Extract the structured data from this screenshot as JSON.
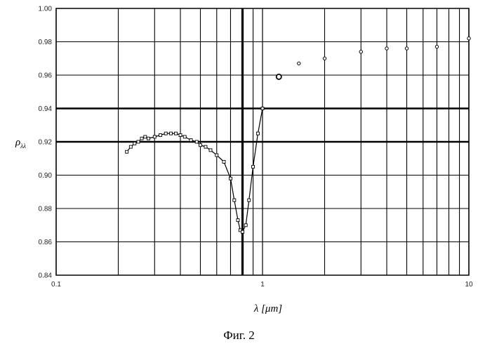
{
  "chart_data": {
    "type": "scatter",
    "title": "",
    "xlabel": "λ [μm]",
    "ylabel": "ρλ",
    "ylabel_main": "ρ",
    "ylabel_sub": "λλ",
    "x_scale": "log",
    "xlim": [
      0.1,
      10
    ],
    "ylim": [
      0.84,
      1.0
    ],
    "x_ticks": [
      0.1,
      1,
      10
    ],
    "x_tick_labels": [
      "0.1",
      "1",
      "10"
    ],
    "y_ticks": [
      0.84,
      0.86,
      0.88,
      0.9,
      0.92,
      0.94,
      0.96,
      0.98,
      1.0
    ],
    "y_tick_labels": [
      "0.84",
      "0.86",
      "0.88",
      "0.90",
      "0.92",
      "0.94",
      "0.96",
      "0.98",
      "1.00"
    ],
    "grid": true,
    "emphasized_gridlines": {
      "y": [
        0.92,
        0.94
      ],
      "x": [
        0.8
      ]
    },
    "series": [
      {
        "style": "line-with-markers",
        "x": [
          0.22,
          0.23,
          0.24,
          0.25,
          0.26,
          0.27,
          0.28,
          0.3,
          0.32,
          0.34,
          0.36,
          0.38,
          0.4,
          0.42,
          0.45,
          0.48,
          0.5,
          0.53,
          0.56,
          0.6,
          0.65,
          0.7,
          0.73,
          0.76,
          0.78,
          0.8,
          0.83,
          0.86,
          0.9,
          0.95,
          1.0
        ],
        "y": [
          0.914,
          0.917,
          0.919,
          0.92,
          0.922,
          0.923,
          0.922,
          0.923,
          0.924,
          0.925,
          0.925,
          0.925,
          0.924,
          0.923,
          0.921,
          0.92,
          0.918,
          0.917,
          0.915,
          0.912,
          0.908,
          0.898,
          0.885,
          0.873,
          0.867,
          0.866,
          0.87,
          0.885,
          0.905,
          0.925,
          0.94
        ]
      },
      {
        "style": "markers",
        "x": [
          1.2,
          1.5,
          2,
          3,
          4,
          5,
          7,
          10
        ],
        "y": [
          0.959,
          0.967,
          0.97,
          0.974,
          0.976,
          0.976,
          0.977,
          0.982
        ]
      }
    ]
  },
  "caption": "Фиг. 2"
}
